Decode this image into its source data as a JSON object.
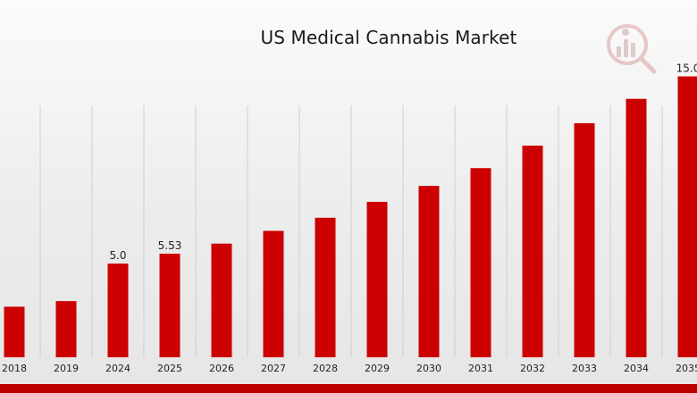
{
  "colors": {
    "bar": "#cc0000",
    "grid": "#cfcfcf",
    "accent": "#c00000",
    "logo": "logo-chart-magnifier-icon"
  },
  "chart_data": {
    "type": "bar",
    "title": "US Medical Cannabis Market",
    "xlabel": "",
    "ylabel": "",
    "categories": [
      "2018",
      "2019",
      "2024",
      "2025",
      "2026",
      "2027",
      "2028",
      "2029",
      "2030",
      "2031",
      "2032",
      "2033",
      "2034",
      "2035"
    ],
    "values": [
      2.7,
      3.0,
      5.0,
      5.53,
      6.07,
      6.75,
      7.45,
      8.3,
      9.15,
      10.1,
      11.3,
      12.5,
      13.8,
      15.0
    ],
    "data_labels": {
      "2024": "5.0",
      "2025": "5.53",
      "2035": "15.0"
    },
    "ylim": [
      0,
      17.17
    ],
    "grid": "vertical",
    "legend": "none"
  }
}
